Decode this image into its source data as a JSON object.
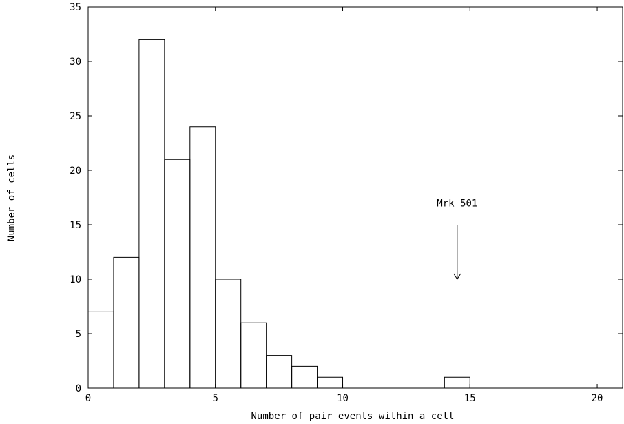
{
  "chart_data": {
    "type": "bar",
    "subtype": "histogram-step",
    "title": "",
    "xlabel": "Number of pair events within a cell",
    "ylabel": "Number of cells",
    "xlim": [
      0,
      21
    ],
    "ylim": [
      0,
      35
    ],
    "xticks": [
      0,
      5,
      10,
      15,
      20
    ],
    "yticks": [
      0,
      5,
      10,
      15,
      20,
      25,
      30,
      35
    ],
    "xtick_labels": [
      "0",
      "5",
      "10",
      "15",
      "20"
    ],
    "ytick_labels": [
      "0",
      "5",
      "10",
      "15",
      "20",
      "25",
      "30",
      "35"
    ],
    "grid": false,
    "bins": [
      {
        "x0": 0,
        "x1": 1,
        "value": 7
      },
      {
        "x0": 1,
        "x1": 2,
        "value": 12
      },
      {
        "x0": 2,
        "x1": 3,
        "value": 32
      },
      {
        "x0": 3,
        "x1": 4,
        "value": 21
      },
      {
        "x0": 4,
        "x1": 5,
        "value": 24
      },
      {
        "x0": 5,
        "x1": 6,
        "value": 10
      },
      {
        "x0": 6,
        "x1": 7,
        "value": 6
      },
      {
        "x0": 7,
        "x1": 8,
        "value": 3
      },
      {
        "x0": 8,
        "x1": 9,
        "value": 2
      },
      {
        "x0": 9,
        "x1": 10,
        "value": 1
      },
      {
        "x0": 14,
        "x1": 15,
        "value": 1
      }
    ],
    "annotations": [
      {
        "text": "Mrk 501",
        "x": 14.5,
        "y": 17,
        "arrow_from_y": 15,
        "arrow_to_y": 10
      }
    ],
    "colors": {
      "line": "#000000",
      "background": "#ffffff"
    }
  }
}
